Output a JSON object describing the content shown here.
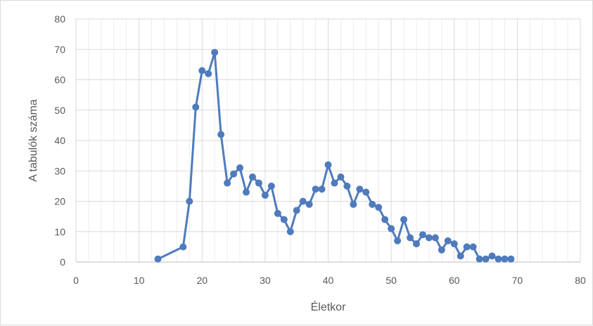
{
  "chart_data": {
    "type": "scatter",
    "mode": "lines+markers",
    "xlabel": "Életkor",
    "ylabel": "A tabulók száma",
    "xlim": [
      0,
      80
    ],
    "ylim": [
      0,
      80
    ],
    "x_ticks": [
      0,
      10,
      20,
      30,
      40,
      50,
      60,
      70,
      80
    ],
    "y_ticks": [
      0,
      10,
      20,
      30,
      40,
      50,
      60,
      70,
      80
    ],
    "grid": true,
    "legend": "none",
    "series_color": "#4f7bbd",
    "points": [
      [
        13,
        1
      ],
      [
        17,
        5
      ],
      [
        18,
        20
      ],
      [
        19,
        51
      ],
      [
        20,
        63
      ],
      [
        21,
        62
      ],
      [
        22,
        69
      ],
      [
        23,
        42
      ],
      [
        24,
        26
      ],
      [
        25,
        29
      ],
      [
        26,
        31
      ],
      [
        27,
        23
      ],
      [
        28,
        28
      ],
      [
        29,
        26
      ],
      [
        30,
        22
      ],
      [
        31,
        25
      ],
      [
        32,
        16
      ],
      [
        33,
        14
      ],
      [
        34,
        10
      ],
      [
        35,
        17
      ],
      [
        36,
        20
      ],
      [
        37,
        19
      ],
      [
        38,
        24
      ],
      [
        39,
        24
      ],
      [
        40,
        32
      ],
      [
        41,
        26
      ],
      [
        42,
        28
      ],
      [
        43,
        25
      ],
      [
        44,
        19
      ],
      [
        45,
        24
      ],
      [
        46,
        23
      ],
      [
        47,
        19
      ],
      [
        48,
        18
      ],
      [
        49,
        14
      ],
      [
        50,
        11
      ],
      [
        51,
        7
      ],
      [
        52,
        14
      ],
      [
        53,
        8
      ],
      [
        54,
        6
      ],
      [
        55,
        9
      ],
      [
        56,
        8
      ],
      [
        57,
        8
      ],
      [
        58,
        4
      ],
      [
        59,
        7
      ],
      [
        60,
        6
      ],
      [
        61,
        2
      ],
      [
        62,
        5
      ],
      [
        63,
        5
      ],
      [
        64,
        1
      ],
      [
        65,
        1
      ],
      [
        66,
        2
      ],
      [
        67,
        1
      ],
      [
        68,
        1
      ],
      [
        69,
        1
      ]
    ]
  }
}
